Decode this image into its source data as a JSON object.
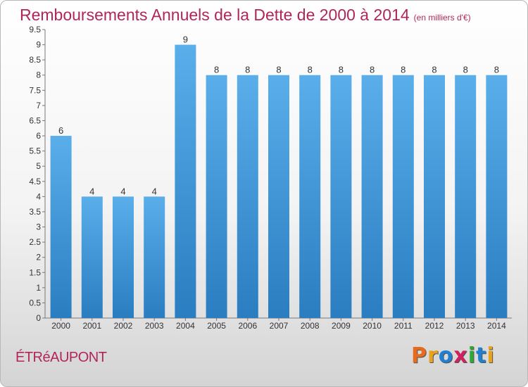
{
  "page": {
    "title": "Remboursements Annuels de la Dette de 2000 à 2014",
    "unit": "(en milliers d'€)",
    "commune": "ÉTRéAUPONT",
    "brand": "Proxiti",
    "brand_colors": [
      "#e86a1c",
      "#e8a21c",
      "#1f7fd0",
      "#d02060",
      "#2fa834",
      "#1f7fd0",
      "#e8a21c"
    ],
    "accent_color": "#b0265a"
  },
  "chart_data": {
    "type": "bar",
    "categories": [
      "2000",
      "2001",
      "2002",
      "2003",
      "2004",
      "2005",
      "2006",
      "2007",
      "2008",
      "2009",
      "2010",
      "2011",
      "2012",
      "2013",
      "2014"
    ],
    "values": [
      6,
      4,
      4,
      4,
      9,
      8,
      8,
      8,
      8,
      8,
      8,
      8,
      8,
      8,
      8
    ],
    "data_labels": [
      "6",
      "4",
      "4",
      "4",
      "9",
      "8",
      "8",
      "8",
      "8",
      "8",
      "8",
      "8",
      "8",
      "8",
      "8"
    ],
    "y_ticks": [
      "0",
      "0.5",
      "1",
      "1.5",
      "2",
      "2.5",
      "3",
      "3.5",
      "4",
      "4.5",
      "5",
      "5.5",
      "6",
      "6.5",
      "7",
      "7.5",
      "8",
      "8.5",
      "9",
      "9.5"
    ],
    "ylim": [
      0,
      9.5
    ],
    "grid": false,
    "bar_color_top": "#5aaeea",
    "bar_color_bottom": "#2a7dc0"
  }
}
